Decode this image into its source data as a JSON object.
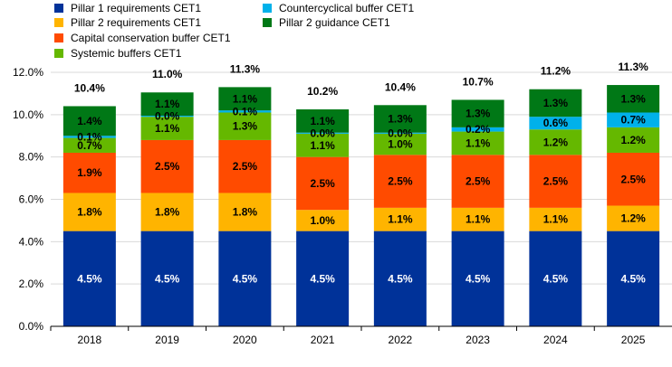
{
  "chart_data": {
    "type": "bar",
    "stacked": true,
    "categories": [
      "2018",
      "2019",
      "2020",
      "2021",
      "2022",
      "2023",
      "2024",
      "2025"
    ],
    "ylim": [
      0,
      12
    ],
    "yticks": [
      "0.0%",
      "2.0%",
      "4.0%",
      "6.0%",
      "8.0%",
      "10.0%",
      "12.0%"
    ],
    "grid": true,
    "legend_position": "top-left",
    "series": [
      {
        "name": "Pillar 1 requirements CET1",
        "color": "#003299",
        "values": [
          4.5,
          4.5,
          4.5,
          4.5,
          4.5,
          4.5,
          4.5,
          4.5
        ],
        "labels": [
          "4.5%",
          "4.5%",
          "4.5%",
          "4.5%",
          "4.5%",
          "4.5%",
          "4.5%",
          "4.5%"
        ]
      },
      {
        "name": "Pillar 2 requirements CET1",
        "color": "#FFB400",
        "values": [
          1.8,
          1.8,
          1.8,
          1.0,
          1.1,
          1.1,
          1.1,
          1.2
        ],
        "labels": [
          "1.8%",
          "1.8%",
          "1.8%",
          "1.0%",
          "1.1%",
          "1.1%",
          "1.1%",
          "1.2%"
        ]
      },
      {
        "name": "Capital conservation buffer CET1",
        "color": "#FF4B00",
        "values": [
          1.9,
          2.5,
          2.5,
          2.5,
          2.5,
          2.5,
          2.5,
          2.5
        ],
        "labels": [
          "1.9%",
          "2.5%",
          "2.5%",
          "2.5%",
          "2.5%",
          "2.5%",
          "2.5%",
          "2.5%"
        ]
      },
      {
        "name": "Systemic buffers CET1",
        "color": "#65B800",
        "values": [
          0.7,
          1.1,
          1.3,
          1.1,
          1.0,
          1.1,
          1.2,
          1.2
        ],
        "labels": [
          "0.7%",
          "1.1%",
          "1.3%",
          "1.1%",
          "1.0%",
          "1.1%",
          "1.2%",
          "1.2%"
        ]
      },
      {
        "name": "Countercyclical buffer CET1",
        "color": "#00B1EA",
        "values": [
          0.1,
          0.05,
          0.1,
          0.05,
          0.05,
          0.2,
          0.6,
          0.7
        ],
        "labels": [
          "0.1%",
          "0.0%",
          "0.1%",
          "0.0%",
          "0.0%",
          "0.2%",
          "0.6%",
          "0.7%"
        ]
      },
      {
        "name": "Pillar 2 guidance CET1",
        "color": "#007816",
        "values": [
          1.4,
          1.1,
          1.1,
          1.1,
          1.3,
          1.3,
          1.3,
          1.3
        ],
        "labels": [
          "1.4%",
          "1.1%",
          "1.1%",
          "1.1%",
          "1.3%",
          "1.3%",
          "1.3%",
          "1.3%"
        ]
      }
    ],
    "totals": [
      "10.4%",
      "11.0%",
      "11.3%",
      "10.2%",
      "10.4%",
      "10.7%",
      "11.2%",
      "11.3%"
    ]
  }
}
